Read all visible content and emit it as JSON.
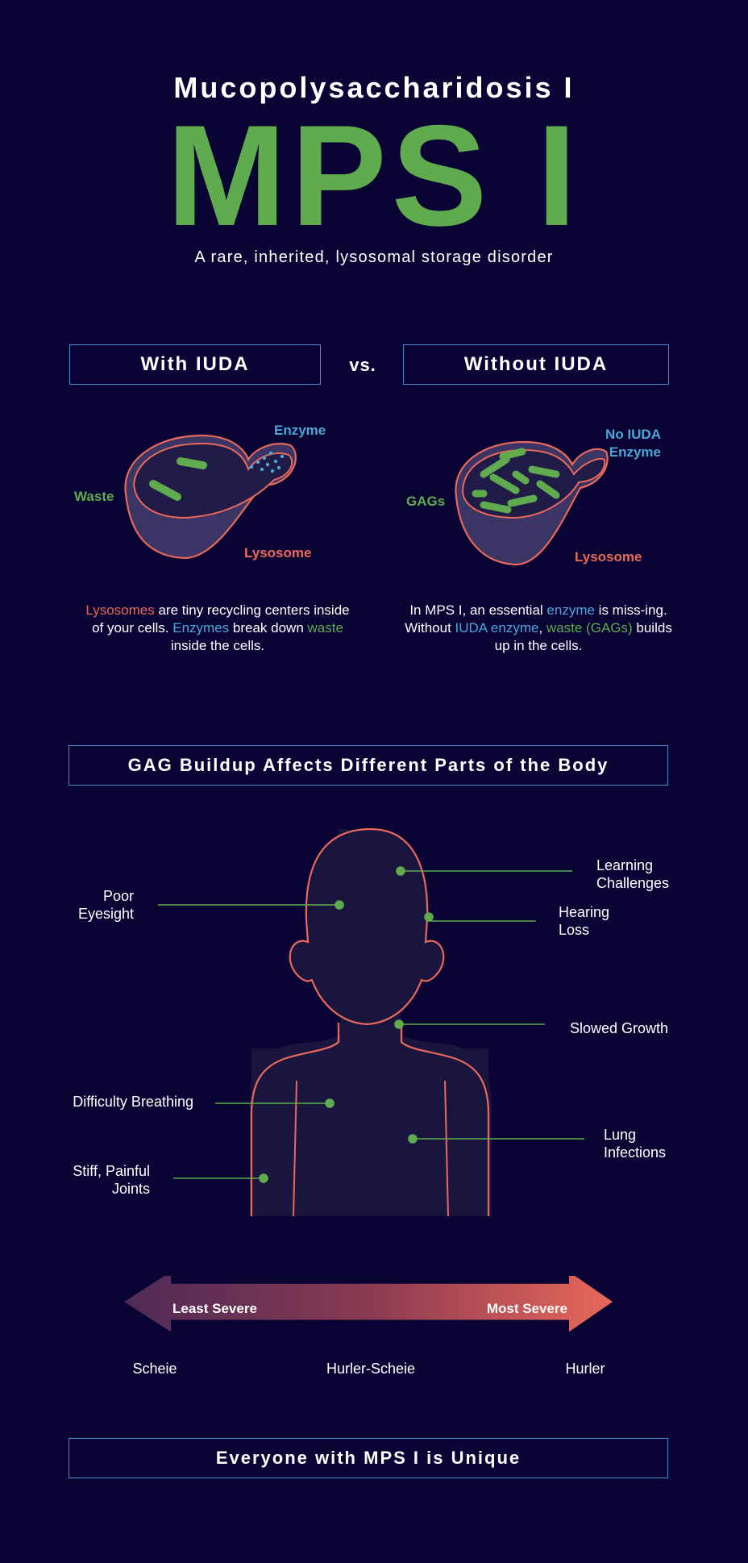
{
  "header": {
    "subtitle": "Mucopolysaccharidosis I",
    "title": "MPS I",
    "tagline": "A rare, inherited, lysosomal storage disorder"
  },
  "comparison": {
    "with_label": "With IUDA",
    "vs_label": "vs.",
    "without_label": "Without IUDA",
    "left": {
      "enzyme_label": "Enzyme",
      "waste_label": "Waste",
      "lysosome_label": "Lysosome",
      "caption": {
        "p1": "Lysosomes",
        "p2": " are tiny recycling centers inside of your cells. ",
        "p3": "Enzymes",
        "p4": " break down ",
        "p5": "waste",
        "p6": " inside the cells."
      }
    },
    "right": {
      "enzyme_label_1": "No IUDA",
      "enzyme_label_2": "Enzyme",
      "gags_label": "GAGs",
      "lysosome_label": "Lysosome",
      "caption": {
        "p1": "In MPS I, an essential ",
        "p2": "enzyme",
        "p3": " is miss-ing. Without ",
        "p4": "IUDA enzyme",
        "p5": ", ",
        "p6": "waste (GAGs)",
        "p7": " builds up in the cells."
      }
    }
  },
  "body_section": {
    "heading": "GAG Buildup Affects Different Parts of the Body",
    "labels": {
      "learning": "Learning Challenges",
      "eyesight": "Poor Eyesight",
      "hearing": "Hearing Loss",
      "growth": "Slowed Growth",
      "breathing": "Difficulty Breathing",
      "lung": "Lung Infections",
      "joints": "Stiff, Painful Joints"
    }
  },
  "severity": {
    "least": "Least Severe",
    "most": "Most Severe",
    "types": [
      "Scheie",
      "Hurler-Scheie",
      "Hurler"
    ]
  },
  "footer": {
    "heading": "Everyone with MPS I is Unique"
  },
  "colors": {
    "background": "#090433",
    "green": "#5fab4e",
    "blue": "#4ca6d8",
    "coral": "#e8685a",
    "box_border": "#4b8ec9"
  }
}
